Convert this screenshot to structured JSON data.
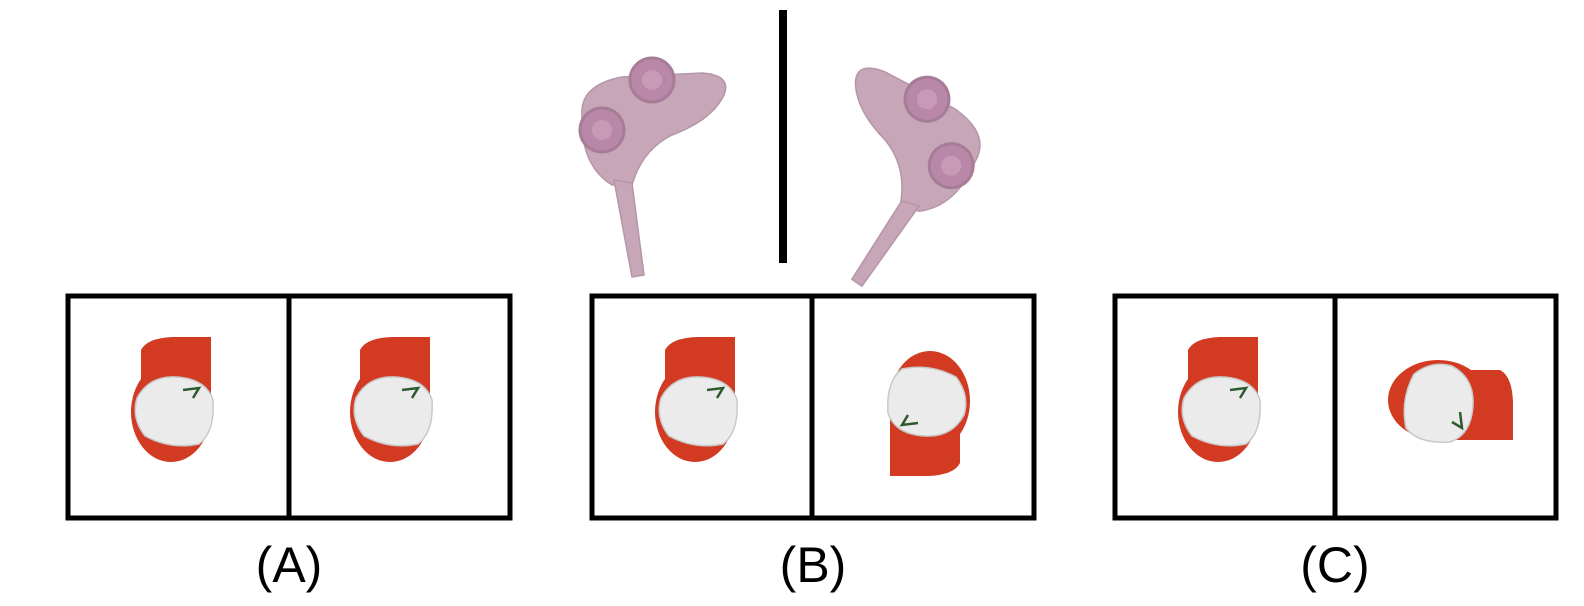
{
  "puzzle": {
    "reference": {
      "left_object": "arm-piece",
      "right_object": "arm-piece-mirrored",
      "object_color": "#c7a6b7",
      "joint_color": "#b987a8",
      "separator_color": "#000000"
    },
    "options": [
      {
        "label": "(A)",
        "left_object": "cap",
        "right_object": "cap"
      },
      {
        "label": "(B)",
        "left_object": "cap",
        "right_object": "cap-rotated"
      },
      {
        "label": "(C)",
        "left_object": "cap",
        "right_object": "cap-rotated"
      }
    ],
    "cap_colors": {
      "shell": "#d23a22",
      "panel": "#ebebeb",
      "mark": "#2e5a2e"
    }
  }
}
